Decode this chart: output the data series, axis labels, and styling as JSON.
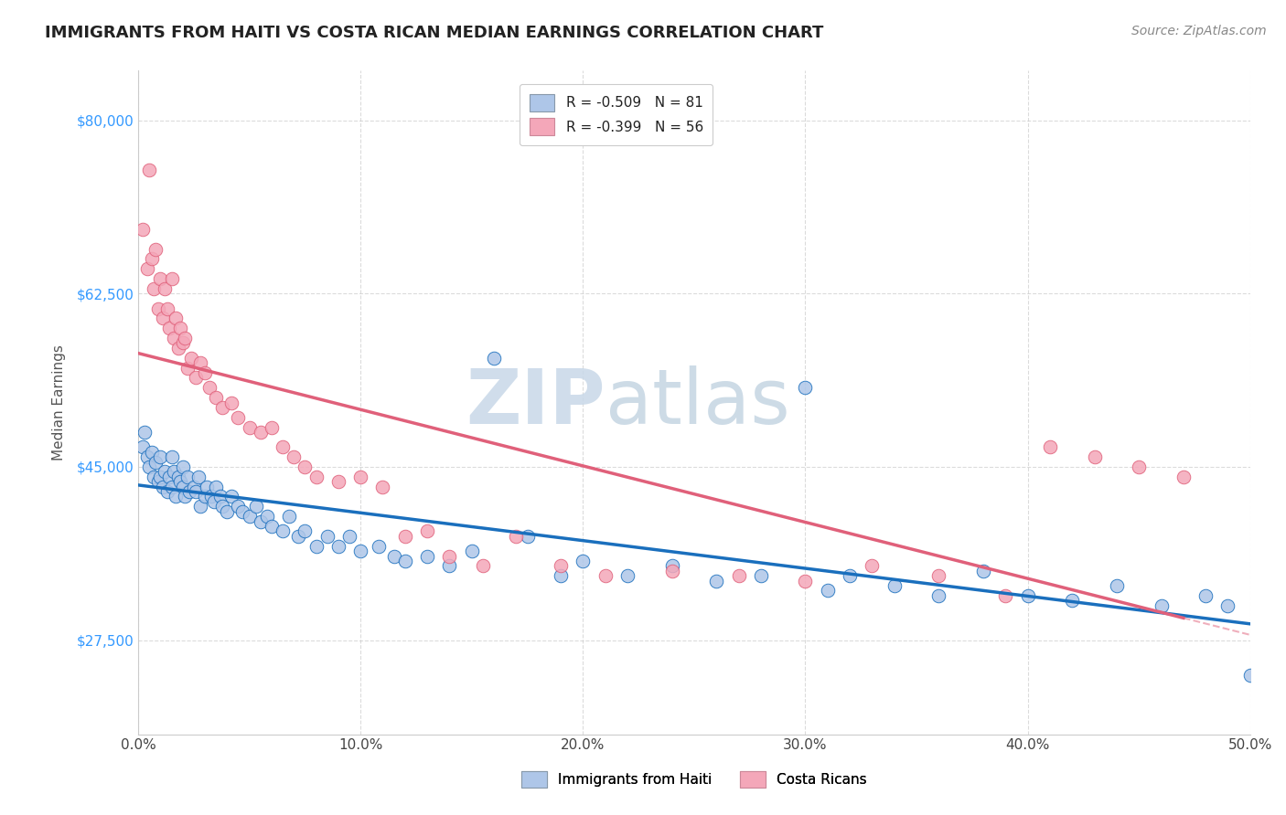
{
  "title": "IMMIGRANTS FROM HAITI VS COSTA RICAN MEDIAN EARNINGS CORRELATION CHART",
  "source": "Source: ZipAtlas.com",
  "xlabel": "",
  "ylabel": "Median Earnings",
  "xlim": [
    0.0,
    0.5
  ],
  "ylim": [
    18000,
    85000
  ],
  "yticks": [
    27500,
    45000,
    62500,
    80000
  ],
  "ytick_labels": [
    "$27,500",
    "$45,000",
    "$62,500",
    "$80,000"
  ],
  "xticks": [
    0.0,
    0.1,
    0.2,
    0.3,
    0.4,
    0.5
  ],
  "xtick_labels": [
    "0.0%",
    "10.0%",
    "20.0%",
    "30.0%",
    "40.0%",
    "50.0%"
  ],
  "legend_entries": [
    {
      "label": "R = -0.509   N = 81",
      "color": "#aec6e8"
    },
    {
      "label": "R = -0.399   N = 56",
      "color": "#f4a7b9"
    }
  ],
  "legend_bottom": [
    {
      "label": "Immigrants from Haiti",
      "color": "#aec6e8"
    },
    {
      "label": "Costa Ricans",
      "color": "#f4a7b9"
    }
  ],
  "haiti_color": "#aec6e8",
  "costa_rica_color": "#f4a7b9",
  "haiti_line_color": "#1a6fbd",
  "costa_rica_line_color": "#e0607a",
  "watermark_color": "#d0dce8",
  "background_color": "#ffffff",
  "grid_color": "#cccccc",
  "haiti_x": [
    0.002,
    0.003,
    0.004,
    0.005,
    0.006,
    0.007,
    0.008,
    0.009,
    0.01,
    0.01,
    0.011,
    0.012,
    0.013,
    0.014,
    0.015,
    0.015,
    0.016,
    0.017,
    0.018,
    0.019,
    0.02,
    0.02,
    0.021,
    0.022,
    0.023,
    0.025,
    0.026,
    0.027,
    0.028,
    0.03,
    0.031,
    0.033,
    0.034,
    0.035,
    0.037,
    0.038,
    0.04,
    0.042,
    0.045,
    0.047,
    0.05,
    0.053,
    0.055,
    0.058,
    0.06,
    0.065,
    0.068,
    0.072,
    0.075,
    0.08,
    0.085,
    0.09,
    0.095,
    0.1,
    0.108,
    0.115,
    0.12,
    0.13,
    0.14,
    0.15,
    0.16,
    0.175,
    0.19,
    0.2,
    0.22,
    0.24,
    0.26,
    0.28,
    0.3,
    0.31,
    0.32,
    0.34,
    0.36,
    0.38,
    0.4,
    0.42,
    0.44,
    0.46,
    0.48,
    0.49,
    0.5
  ],
  "haiti_y": [
    47000,
    48500,
    46000,
    45000,
    46500,
    44000,
    45500,
    43500,
    46000,
    44000,
    43000,
    44500,
    42500,
    44000,
    46000,
    43000,
    44500,
    42000,
    44000,
    43500,
    45000,
    43000,
    42000,
    44000,
    42500,
    43000,
    42500,
    44000,
    41000,
    42000,
    43000,
    42000,
    41500,
    43000,
    42000,
    41000,
    40500,
    42000,
    41000,
    40500,
    40000,
    41000,
    39500,
    40000,
    39000,
    38500,
    40000,
    38000,
    38500,
    37000,
    38000,
    37000,
    38000,
    36500,
    37000,
    36000,
    35500,
    36000,
    35000,
    36500,
    56000,
    38000,
    34000,
    35500,
    34000,
    35000,
    33500,
    34000,
    53000,
    32500,
    34000,
    33000,
    32000,
    34500,
    32000,
    31500,
    33000,
    31000,
    32000,
    31000,
    24000
  ],
  "costa_rica_x": [
    0.002,
    0.004,
    0.005,
    0.006,
    0.007,
    0.008,
    0.009,
    0.01,
    0.011,
    0.012,
    0.013,
    0.014,
    0.015,
    0.016,
    0.017,
    0.018,
    0.019,
    0.02,
    0.021,
    0.022,
    0.024,
    0.026,
    0.028,
    0.03,
    0.032,
    0.035,
    0.038,
    0.042,
    0.045,
    0.05,
    0.055,
    0.06,
    0.065,
    0.07,
    0.075,
    0.08,
    0.09,
    0.1,
    0.11,
    0.12,
    0.13,
    0.14,
    0.155,
    0.17,
    0.19,
    0.21,
    0.24,
    0.27,
    0.3,
    0.33,
    0.36,
    0.39,
    0.41,
    0.43,
    0.45,
    0.47
  ],
  "costa_rica_y": [
    69000,
    65000,
    75000,
    66000,
    63000,
    67000,
    61000,
    64000,
    60000,
    63000,
    61000,
    59000,
    64000,
    58000,
    60000,
    57000,
    59000,
    57500,
    58000,
    55000,
    56000,
    54000,
    55500,
    54500,
    53000,
    52000,
    51000,
    51500,
    50000,
    49000,
    48500,
    49000,
    47000,
    46000,
    45000,
    44000,
    43500,
    44000,
    43000,
    38000,
    38500,
    36000,
    35000,
    38000,
    35000,
    34000,
    34500,
    34000,
    33500,
    35000,
    34000,
    32000,
    47000,
    46000,
    45000,
    44000
  ]
}
